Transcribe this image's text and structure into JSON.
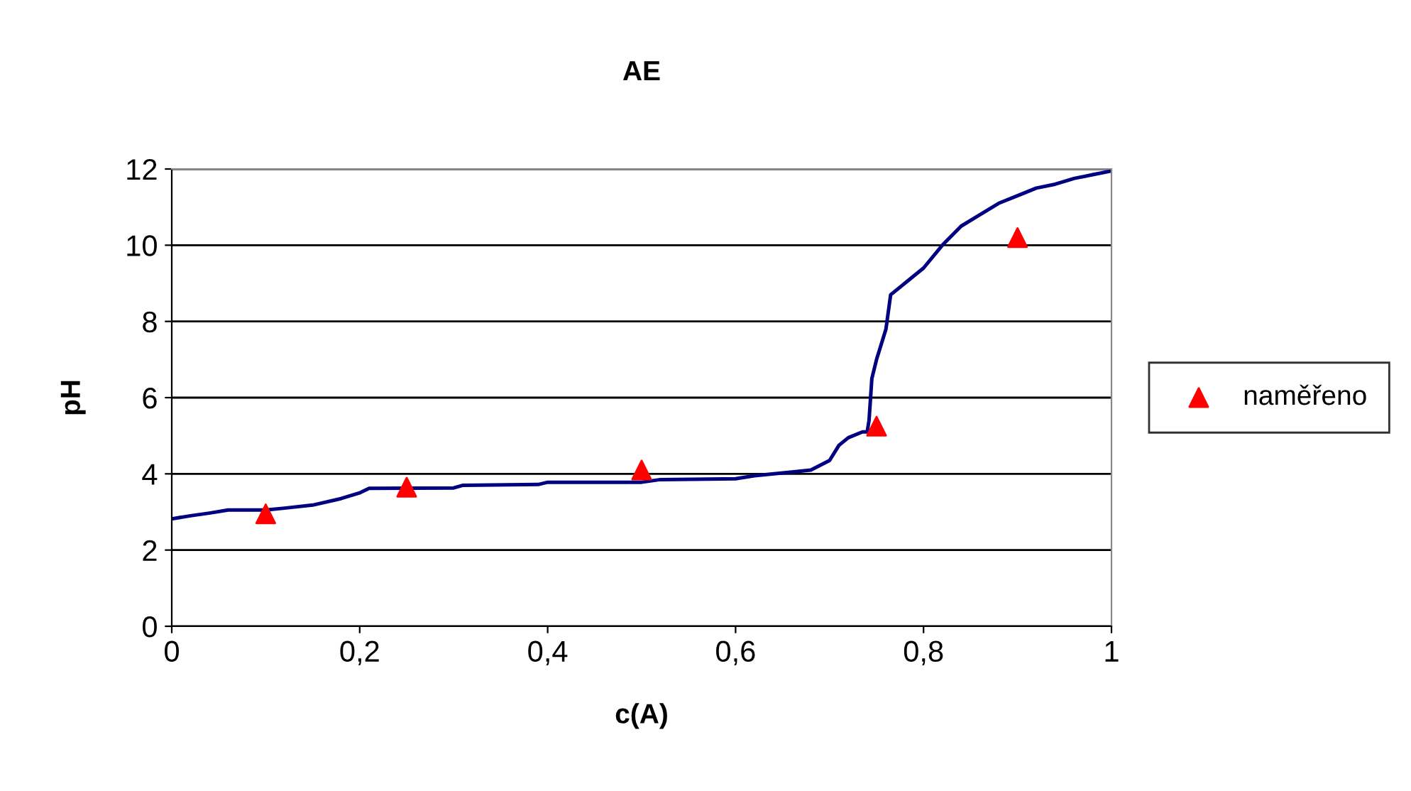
{
  "chart_data": {
    "type": "line",
    "title": "AE",
    "xlabel": "c(A)",
    "ylabel": "pH",
    "xlim": [
      0,
      1
    ],
    "xticks": [
      {
        "value": 0,
        "label": "0"
      },
      {
        "value": 0.2,
        "label": "0,2"
      },
      {
        "value": 0.4,
        "label": "0,4"
      },
      {
        "value": 0.6,
        "label": "0,6"
      },
      {
        "value": 0.8,
        "label": "0,8"
      },
      {
        "value": 1,
        "label": "1"
      }
    ],
    "ylim": [
      0,
      12
    ],
    "yticks": [
      0,
      2,
      4,
      6,
      8,
      10,
      12
    ],
    "grid": "y",
    "legend": "right",
    "series": [
      {
        "color": "#000080",
        "marker": "none",
        "x": [
          0,
          0.02,
          0.04,
          0.06,
          0.1,
          0.12,
          0.15,
          0.18,
          0.2,
          0.21,
          0.3,
          0.31,
          0.39,
          0.4,
          0.5,
          0.52,
          0.6,
          0.62,
          0.66,
          0.68,
          0.7,
          0.71,
          0.72,
          0.735,
          0.74,
          0.742,
          0.745,
          0.75,
          0.76,
          0.765,
          0.78,
          0.8,
          0.82,
          0.84,
          0.86,
          0.88,
          0.9,
          0.92,
          0.94,
          0.96,
          0.98,
          1
        ],
        "values": [
          2.82,
          2.9,
          2.97,
          3.05,
          3.05,
          3.1,
          3.18,
          3.35,
          3.5,
          3.62,
          3.63,
          3.7,
          3.72,
          3.78,
          3.78,
          3.85,
          3.87,
          3.95,
          4.05,
          4.1,
          4.35,
          4.75,
          4.95,
          5.1,
          5.1,
          5.4,
          6.5,
          7.0,
          7.8,
          8.7,
          9.0,
          9.4,
          10.0,
          10.5,
          10.8,
          11.1,
          11.3,
          11.5,
          11.6,
          11.75,
          11.85,
          11.95
        ]
      },
      {
        "type": "scatter",
        "name": "naměřeno",
        "color": "#ff0000",
        "marker": "triangle",
        "x": [
          0.1,
          0.25,
          0.5,
          0.75,
          0.9
        ],
        "values": [
          2.95,
          3.65,
          4.1,
          5.25,
          10.2
        ]
      }
    ]
  }
}
